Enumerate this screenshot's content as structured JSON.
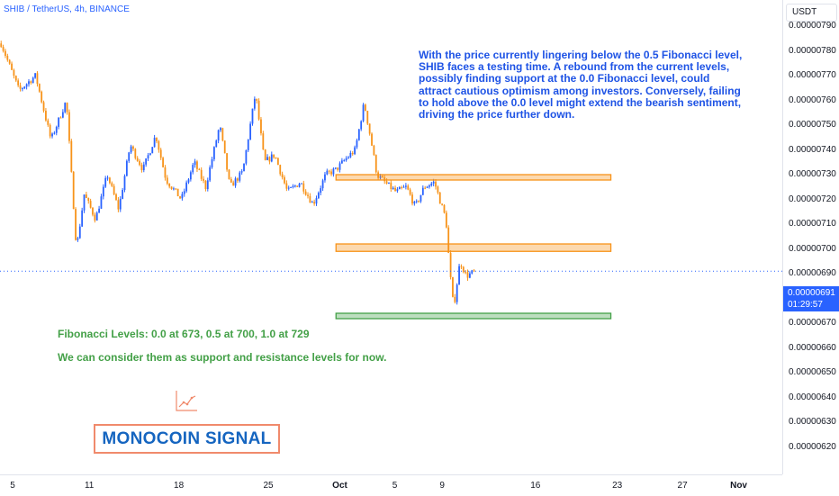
{
  "header": {
    "symbol_title": "SHIB / TetherUS, 4h, BINANCE",
    "currency": "USDT"
  },
  "last_price": {
    "price": "0.00000691",
    "countdown": "01:29:57"
  },
  "analysis_note": "With the price currently lingering below the 0.5 Fibonacci level, SHIB faces a testing time. A rebound from the current levels, possibly finding support at the 0.0 Fibonacci level, could attract cautious optimism among investors. Conversely, failing to hold above the 0.0 level might extend the bearish sentiment, driving the price further down.",
  "fib_label": "Fibonacci Levels: 0.0 at 673, 0.5 at 700, 1.0 at 729",
  "fib_note": "We can consider them as support and resistance levels for now.",
  "brand": {
    "name": "MONOCOIN SIGNAL",
    "icon": "line-chart-icon"
  },
  "colors": {
    "up": "#2962ff",
    "down": "#f7931a",
    "text_blue": "#1e53e5",
    "text_green": "#43a047",
    "zone_orange": "#f7931a",
    "zone_green": "#43a047"
  },
  "chart_data": {
    "type": "candlestick",
    "symbol": "SHIB / TetherUS",
    "interval": "4h",
    "exchange": "BINANCE",
    "y_range": [
      6.17e-06,
      7.97e-06
    ],
    "y_ticks": [
      "0.00000790",
      "0.00000780",
      "0.00000770",
      "0.00000760",
      "0.00000750",
      "0.00000740",
      "0.00000730",
      "0.00000720",
      "0.00000710",
      "0.00000700",
      "0.00000690",
      "0.00000680",
      "0.00000670",
      "0.00000660",
      "0.00000650",
      "0.00000640",
      "0.00000630",
      "0.00000620"
    ],
    "x_ticks": [
      {
        "label": "5",
        "day": 5
      },
      {
        "label": "11",
        "day": 11
      },
      {
        "label": "18",
        "day": 18
      },
      {
        "label": "25",
        "day": 25
      },
      {
        "label": "Oct",
        "day": 30.6,
        "bold": true
      },
      {
        "label": "5",
        "day": 34.9
      },
      {
        "label": "9",
        "day": 38.6
      },
      {
        "label": "16",
        "day": 45.9
      },
      {
        "label": "23",
        "day": 52.3
      },
      {
        "label": "27",
        "day": 57.4
      },
      {
        "label": "Nov",
        "day": 61.8,
        "bold": true
      }
    ],
    "x_range": [
      4.1,
      66.1
    ],
    "price_path": [
      [
        4.1,
        7.83e-06
      ],
      [
        5.5,
        7.64e-06
      ],
      [
        6.8,
        7.7e-06
      ],
      [
        8.0,
        7.44e-06
      ],
      [
        9.2,
        7.6e-06
      ],
      [
        10.0,
        7e-06
      ],
      [
        10.6,
        7.22e-06
      ],
      [
        11.5,
        7.12e-06
      ],
      [
        12.4,
        7.3e-06
      ],
      [
        13.3,
        7.16e-06
      ],
      [
        14.2,
        7.42e-06
      ],
      [
        15.2,
        7.32e-06
      ],
      [
        16.2,
        7.46e-06
      ],
      [
        17.0,
        7.28e-06
      ],
      [
        18.2,
        7.2e-06
      ],
      [
        19.2,
        7.35e-06
      ],
      [
        20.1,
        7.25e-06
      ],
      [
        21.2,
        7.5e-06
      ],
      [
        22.0,
        7.25e-06
      ],
      [
        23.0,
        7.31e-06
      ],
      [
        24.0,
        7.63e-06
      ],
      [
        24.7,
        7.35e-06
      ],
      [
        25.5,
        7.38e-06
      ],
      [
        26.5,
        7.23e-06
      ],
      [
        27.5,
        7.27e-06
      ],
      [
        28.5,
        7.18e-06
      ],
      [
        29.5,
        7.3e-06
      ],
      [
        30.3,
        7.32e-06
      ],
      [
        31.0,
        7.36e-06
      ],
      [
        31.8,
        7.4e-06
      ],
      [
        32.5,
        7.59e-06
      ],
      [
        33.0,
        7.45e-06
      ],
      [
        33.5,
        7.3e-06
      ],
      [
        34.3,
        7.26e-06
      ],
      [
        35.0,
        7.23e-06
      ],
      [
        35.8,
        7.25e-06
      ],
      [
        36.5,
        7.17e-06
      ],
      [
        37.2,
        7.25e-06
      ],
      [
        38.0,
        7.27e-06
      ],
      [
        38.4,
        7.2e-06
      ],
      [
        38.9,
        7.12e-06
      ],
      [
        39.2,
        6.91e-06
      ],
      [
        39.5,
        6.76e-06
      ],
      [
        40.0,
        6.95e-06
      ],
      [
        40.5,
        6.89e-06
      ],
      [
        41.2,
        6.91e-06
      ]
    ],
    "zones": [
      {
        "name": "resistance",
        "y_low": 7.28e-06,
        "y_high": 7.3e-06,
        "x_start": 30.3,
        "x_end": 51.8,
        "color": "orange"
      },
      {
        "name": "mid",
        "y_low": 6.99e-06,
        "y_high": 7.02e-06,
        "x_start": 30.3,
        "x_end": 51.8,
        "color": "orange"
      },
      {
        "name": "support",
        "y_low": 6.72e-06,
        "y_high": 6.74e-06,
        "x_start": 30.3,
        "x_end": 51.8,
        "color": "green"
      }
    ],
    "last_price": 6.91e-06
  }
}
